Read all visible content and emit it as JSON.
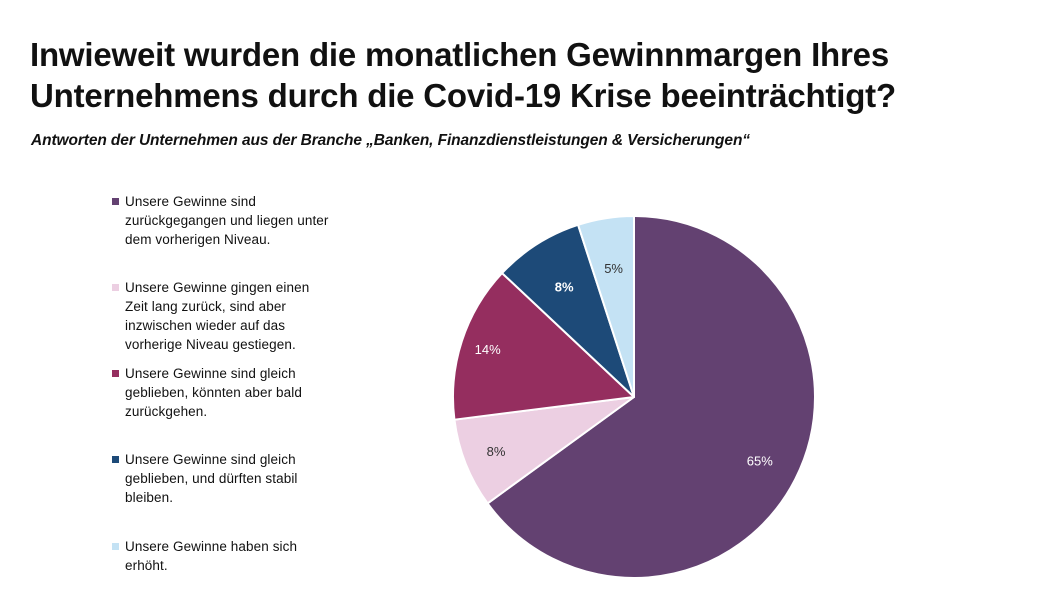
{
  "title_line1": "Inwieweit wurden die monatlichen Gewinnmargen Ihres",
  "title_line2": "Unternehmens durch die Covid-19 Krise beeinträchtigt?",
  "subtitle": "Antworten der Unternehmen aus der Branche „Banken, Finanzdienstleistungen & Versicherungen“",
  "chart_data": {
    "type": "pie",
    "slices": [
      {
        "label_lines": [
          "Unsere Gewinne sind",
          "zurückgegangen und liegen unter",
          "dem vorherigen Niveau."
        ],
        "value": 65,
        "value_label": "65%",
        "color": "#634171"
      },
      {
        "label_lines": [
          "Unsere Gewinne gingen einen",
          "Zeit lang zurück, sind aber",
          "inzwischen wieder auf das",
          "vorherige Niveau gestiegen."
        ],
        "value": 8,
        "value_label": "8%",
        "color": "#eccfe2"
      },
      {
        "label_lines": [
          "Unsere Gewinne sind gleich",
          "geblieben, könnten aber bald",
          "zurückgehen."
        ],
        "value": 14,
        "value_label": "14%",
        "color": "#952e5f"
      },
      {
        "label_lines": [
          "Unsere Gewinne sind gleich",
          "geblieben, und dürften stabil",
          "bleiben."
        ],
        "value": 8,
        "value_label": "8%",
        "color": "#1d4a78"
      },
      {
        "label_lines": [
          "Unsere Gewinne haben sich",
          "erhöht."
        ],
        "value": 5,
        "value_label": "5%",
        "color": "#c4e2f4"
      }
    ],
    "legend_placement": "left",
    "start": "top",
    "direction": "clockwise"
  }
}
